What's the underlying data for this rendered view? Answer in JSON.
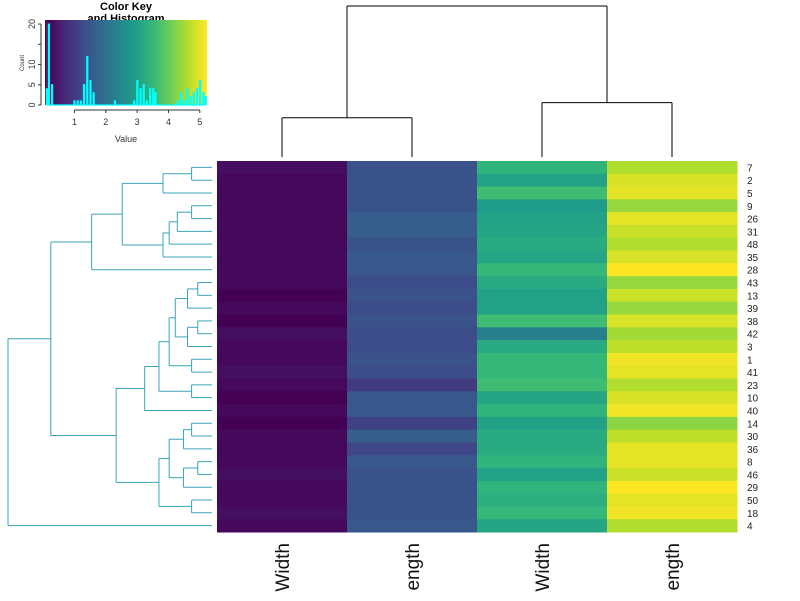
{
  "chart_data": {
    "type": "heatmap",
    "colormap": "viridis",
    "column_labels": [
      "Width",
      "ength",
      "Width",
      "ength"
    ],
    "row_labels": [
      "7",
      "2",
      "5",
      "9",
      "26",
      "31",
      "48",
      "35",
      "28",
      "43",
      "13",
      "39",
      "38",
      "42",
      "3",
      "1",
      "41",
      "23",
      "10",
      "40",
      "14",
      "30",
      "36",
      "8",
      "46",
      "29",
      "50",
      "18",
      "4"
    ],
    "values": [
      [
        0.3,
        1.4,
        3.4,
        4.6
      ],
      [
        0.2,
        1.4,
        3.0,
        4.9
      ],
      [
        0.2,
        1.4,
        3.6,
        5.0
      ],
      [
        0.2,
        1.4,
        2.9,
        4.4
      ],
      [
        0.2,
        1.6,
        3.0,
        5.0
      ],
      [
        0.2,
        1.6,
        3.1,
        4.8
      ],
      [
        0.2,
        1.4,
        3.2,
        4.6
      ],
      [
        0.2,
        1.5,
        3.1,
        4.9
      ],
      [
        0.2,
        1.5,
        3.5,
        5.2
      ],
      [
        0.2,
        1.3,
        3.2,
        4.4
      ],
      [
        0.1,
        1.4,
        3.0,
        4.8
      ],
      [
        0.2,
        1.3,
        3.0,
        4.4
      ],
      [
        0.1,
        1.4,
        3.6,
        4.9
      ],
      [
        0.3,
        1.3,
        2.3,
        4.5
      ],
      [
        0.2,
        1.3,
        3.2,
        4.7
      ],
      [
        0.2,
        1.4,
        3.5,
        5.1
      ],
      [
        0.3,
        1.3,
        3.5,
        5.0
      ],
      [
        0.2,
        1.0,
        3.6,
        4.6
      ],
      [
        0.1,
        1.5,
        3.1,
        4.9
      ],
      [
        0.2,
        1.5,
        3.4,
        5.1
      ],
      [
        0.1,
        1.1,
        3.0,
        4.3
      ],
      [
        0.2,
        1.6,
        3.2,
        4.7
      ],
      [
        0.2,
        1.2,
        3.2,
        5.0
      ],
      [
        0.2,
        1.5,
        3.4,
        5.0
      ],
      [
        0.3,
        1.4,
        3.0,
        4.8
      ],
      [
        0.2,
        1.4,
        3.4,
        5.2
      ],
      [
        0.2,
        1.4,
        3.3,
        5.0
      ],
      [
        0.3,
        1.4,
        3.5,
        5.1
      ],
      [
        0.2,
        1.5,
        3.1,
        4.6
      ]
    ],
    "row_dendrogram": {
      "h": 1.0,
      "c": [
        {
          "h": 0.79,
          "c": [
            {
              "h": 0.59,
              "c": [
                {
                  "h": 0.44,
                  "c": [
                    {
                      "h": 0.24,
                      "c": [
                        {
                          "h": 0.1,
                          "c": [
                            "7",
                            "2"
                          ]
                        },
                        "5"
                      ]
                    },
                    {
                      "h": 0.24,
                      "c": [
                        {
                          "h": 0.21,
                          "c": [
                            {
                              "h": 0.17,
                              "c": [
                                {
                                  "h": 0.1,
                                  "c": [
                                    "9",
                                    "26"
                                  ]
                                },
                                "31"
                              ]
                            },
                            "48"
                          ]
                        },
                        "35"
                      ]
                    }
                  ]
                },
                "28"
              ]
            },
            {
              "h": 0.47,
              "c": [
                {
                  "h": 0.33,
                  "c": [
                    {
                      "h": 0.26,
                      "c": [
                        {
                          "h": 0.21,
                          "c": [
                            {
                              "h": 0.18,
                              "c": [
                                {
                                  "h": 0.12,
                                  "c": [
                                    {
                                      "h": 0.07,
                                      "c": [
                                        "43",
                                        "13"
                                      ]
                                    },
                                    "39"
                                  ]
                                },
                                {
                                  "h": 0.12,
                                  "c": [
                                    {
                                      "h": 0.07,
                                      "c": [
                                        "38",
                                        "42"
                                      ]
                                    },
                                    "3"
                                  ]
                                }
                              ]
                            },
                            {
                              "h": 0.1,
                              "c": [
                                "1",
                                "41"
                              ]
                            }
                          ]
                        },
                        {
                          "h": 0.1,
                          "c": [
                            "23",
                            "10"
                          ]
                        }
                      ]
                    },
                    "40"
                  ]
                },
                {
                  "h": 0.26,
                  "c": [
                    {
                      "h": 0.21,
                      "c": [
                        {
                          "h": 0.14,
                          "c": [
                            {
                              "h": 0.1,
                              "c": [
                                "14",
                                "30"
                              ]
                            },
                            "36"
                          ]
                        },
                        {
                          "h": 0.14,
                          "c": [
                            {
                              "h": 0.07,
                              "c": [
                                "8",
                                "46"
                              ]
                            },
                            "29"
                          ]
                        }
                      ]
                    },
                    {
                      "h": 0.1,
                      "c": [
                        "50",
                        "18"
                      ]
                    }
                  ]
                }
              ]
            }
          ]
        },
        "4"
      ]
    },
    "column_dendrogram": {
      "h": 1.0,
      "c": [
        {
          "h": 0.26,
          "c": [
            0,
            1
          ]
        },
        {
          "h": 0.36,
          "c": [
            2,
            3
          ]
        }
      ]
    },
    "row_dendrogram_color": "#3aa3b8",
    "column_dendrogram_color": "#000000",
    "color_key": {
      "title_line1": "Color Key",
      "title_line2": "and Histogram",
      "xlabel": "Value",
      "ylabel": "Count",
      "xticks": [
        1,
        2,
        3,
        4,
        5
      ],
      "yticks": [
        0,
        5,
        10,
        15,
        20
      ],
      "ytick_labels": [
        "0",
        "5",
        "10",
        "",
        "20"
      ],
      "xlim": [
        0.06,
        5.23
      ],
      "ylim": [
        0,
        21
      ],
      "histogram_color": "#00ffff",
      "breaks": 150
    }
  }
}
